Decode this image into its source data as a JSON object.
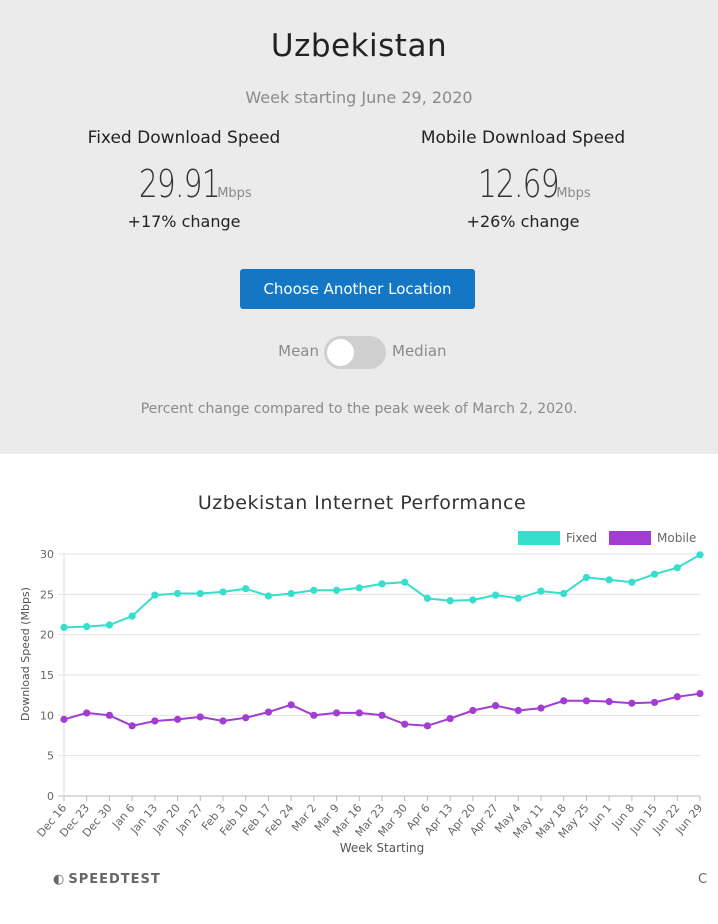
{
  "header": {
    "country": "Uzbekistan",
    "week": "Week starting June 29, 2020"
  },
  "fixed": {
    "label": "Fixed Download Speed",
    "value": "29.91",
    "unit": "Mbps",
    "change": "+17% change"
  },
  "mobile": {
    "label": "Mobile Download Speed",
    "value": "12.69",
    "unit": "Mbps",
    "change": "+26% change"
  },
  "controls": {
    "choose_button": "Choose Another Location",
    "toggle_left": "Mean",
    "toggle_right": "Median",
    "toggle_state": "Mean"
  },
  "footnote": "Percent change compared to the peak week of March 2, 2020.",
  "branding": {
    "logo_text": "SPEEDTEST",
    "logo_icon": "gauge-icon",
    "corner_text": "C"
  },
  "colors": {
    "fixed": "#35dfcb",
    "mobile": "#a23cd2",
    "button": "#1477c6",
    "panel": "#ebebeb"
  },
  "chart_data": {
    "type": "line",
    "title": "Uzbekistan Internet Performance",
    "xlabel": "Week Starting",
    "ylabel": "Download Speed (Mbps)",
    "ylim": [
      0,
      30
    ],
    "yticks": [
      0,
      5,
      10,
      15,
      20,
      25,
      30
    ],
    "grid": true,
    "legend_position": "top-right",
    "categories": [
      "Dec 16",
      "Dec 23",
      "Dec 30",
      "Jan 6",
      "Jan 13",
      "Jan 20",
      "Jan 27",
      "Feb 3",
      "Feb 10",
      "Feb 17",
      "Feb 24",
      "Mar 2",
      "Mar 9",
      "Mar 16",
      "Mar 23",
      "Mar 30",
      "Apr 6",
      "Apr 13",
      "Apr 20",
      "Apr 27",
      "May 4",
      "May 11",
      "May 18",
      "May 25",
      "Jun 1",
      "Jun 8",
      "Jun 15",
      "Jun 22",
      "Jun 29"
    ],
    "series": [
      {
        "name": "Fixed",
        "color": "#35dfcb",
        "values": [
          20.9,
          21.0,
          21.2,
          22.3,
          24.9,
          25.1,
          25.1,
          25.3,
          25.7,
          24.8,
          25.1,
          25.5,
          25.5,
          25.8,
          26.3,
          26.5,
          24.5,
          24.2,
          24.3,
          24.9,
          24.5,
          25.4,
          25.1,
          27.1,
          26.8,
          26.5,
          27.5,
          28.3,
          29.9
        ]
      },
      {
        "name": "Mobile",
        "color": "#a23cd2",
        "values": [
          9.5,
          10.3,
          10.0,
          8.7,
          9.3,
          9.5,
          9.8,
          9.3,
          9.7,
          10.4,
          11.3,
          10.0,
          10.3,
          10.3,
          10.0,
          8.9,
          8.7,
          9.6,
          10.6,
          11.2,
          10.6,
          10.9,
          11.8,
          11.8,
          11.7,
          11.5,
          11.6,
          12.3,
          12.7
        ]
      }
    ]
  }
}
